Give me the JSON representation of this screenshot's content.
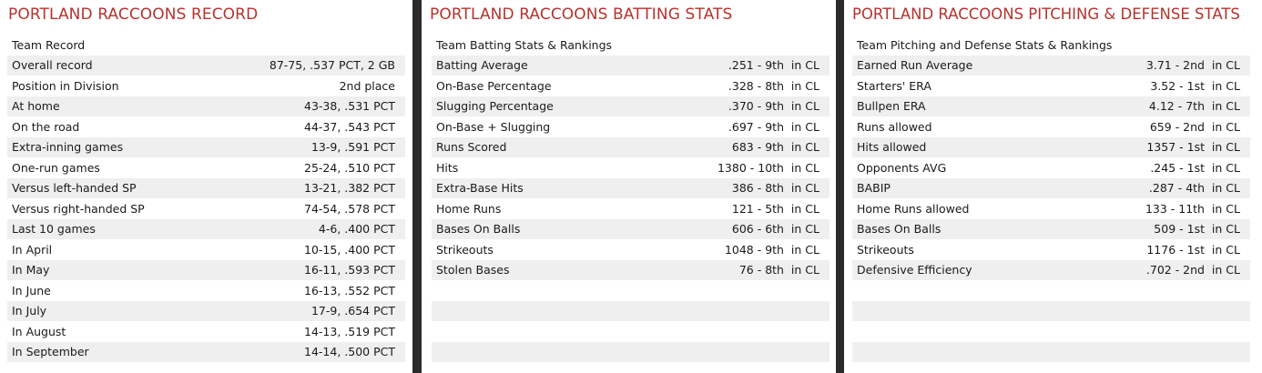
{
  "record": {
    "title": "PORTLAND RACCOONS RECORD",
    "header": "Team Record",
    "rows": [
      {
        "label": "Overall record",
        "value": "87-75, .537 PCT, 2 GB"
      },
      {
        "label": "Position in Division",
        "value": "2nd place"
      },
      {
        "label": "At home",
        "value": "43-38, .531 PCT"
      },
      {
        "label": "On the road",
        "value": "44-37, .543 PCT"
      },
      {
        "label": "Extra-inning games",
        "value": "13-9, .591 PCT"
      },
      {
        "label": "One-run games",
        "value": "25-24, .510 PCT"
      },
      {
        "label": "Versus left-handed SP",
        "value": "13-21, .382 PCT"
      },
      {
        "label": "Versus right-handed SP",
        "value": "74-54, .578 PCT"
      },
      {
        "label": "Last 10 games",
        "value": "4-6, .400 PCT"
      },
      {
        "label": "In April",
        "value": "10-15, .400 PCT"
      },
      {
        "label": "In May",
        "value": "16-11, .593 PCT"
      },
      {
        "label": "In June",
        "value": "16-13, .552 PCT"
      },
      {
        "label": "In July",
        "value": "17-9, .654 PCT"
      },
      {
        "label": "In August",
        "value": "14-13, .519 PCT"
      },
      {
        "label": "In September",
        "value": "14-14, .500 PCT"
      }
    ]
  },
  "batting": {
    "title": "PORTLAND RACCOONS BATTING STATS",
    "header": "Team Batting Stats & Rankings",
    "rows": [
      {
        "label": "Batting Average",
        "value": ".251 - 9th  in CL"
      },
      {
        "label": "On-Base Percentage",
        "value": ".328 - 8th  in CL"
      },
      {
        "label": "Slugging Percentage",
        "value": ".370 - 9th  in CL"
      },
      {
        "label": "On-Base + Slugging",
        "value": ".697 - 9th  in CL"
      },
      {
        "label": "Runs Scored",
        "value": "683 - 9th  in CL"
      },
      {
        "label": "Hits",
        "value": "1380 - 10th  in CL"
      },
      {
        "label": "Extra-Base Hits",
        "value": "386 - 8th  in CL"
      },
      {
        "label": "Home Runs",
        "value": "121 - 5th  in CL"
      },
      {
        "label": "Bases On Balls",
        "value": "606 - 6th  in CL"
      },
      {
        "label": "Strikeouts",
        "value": "1048 - 9th  in CL"
      },
      {
        "label": "Stolen Bases",
        "value": "76 - 8th  in CL"
      },
      {
        "label": "",
        "value": ""
      },
      {
        "label": "",
        "value": ""
      },
      {
        "label": "",
        "value": ""
      },
      {
        "label": "",
        "value": ""
      }
    ]
  },
  "pitching": {
    "title": "PORTLAND RACCOONS PITCHING & DEFENSE STATS",
    "header": "Team Pitching and Defense Stats & Rankings",
    "rows": [
      {
        "label": "Earned Run Average",
        "value": "3.71 - 2nd  in CL"
      },
      {
        "label": "Starters' ERA",
        "value": "3.52 - 1st  in CL"
      },
      {
        "label": "Bullpen ERA",
        "value": "4.12 - 7th  in CL"
      },
      {
        "label": "Runs allowed",
        "value": "659 - 2nd  in CL"
      },
      {
        "label": "Hits allowed",
        "value": "1357 - 1st  in CL"
      },
      {
        "label": "Opponents AVG",
        "value": ".245 - 1st  in CL"
      },
      {
        "label": "BABIP",
        "value": ".287 - 4th  in CL"
      },
      {
        "label": "Home Runs allowed",
        "value": "133 - 11th  in CL"
      },
      {
        "label": "Bases On Balls",
        "value": "509 - 1st  in CL"
      },
      {
        "label": "Strikeouts",
        "value": "1176 - 1st  in CL"
      },
      {
        "label": "Defensive Efficiency",
        "value": ".702 - 2nd  in CL"
      },
      {
        "label": "",
        "value": ""
      },
      {
        "label": "",
        "value": ""
      },
      {
        "label": "",
        "value": ""
      },
      {
        "label": "",
        "value": ""
      }
    ]
  },
  "colors": {
    "title": "#b4332e",
    "row_alt": "#efefef",
    "divider": "#2b2b2b"
  }
}
